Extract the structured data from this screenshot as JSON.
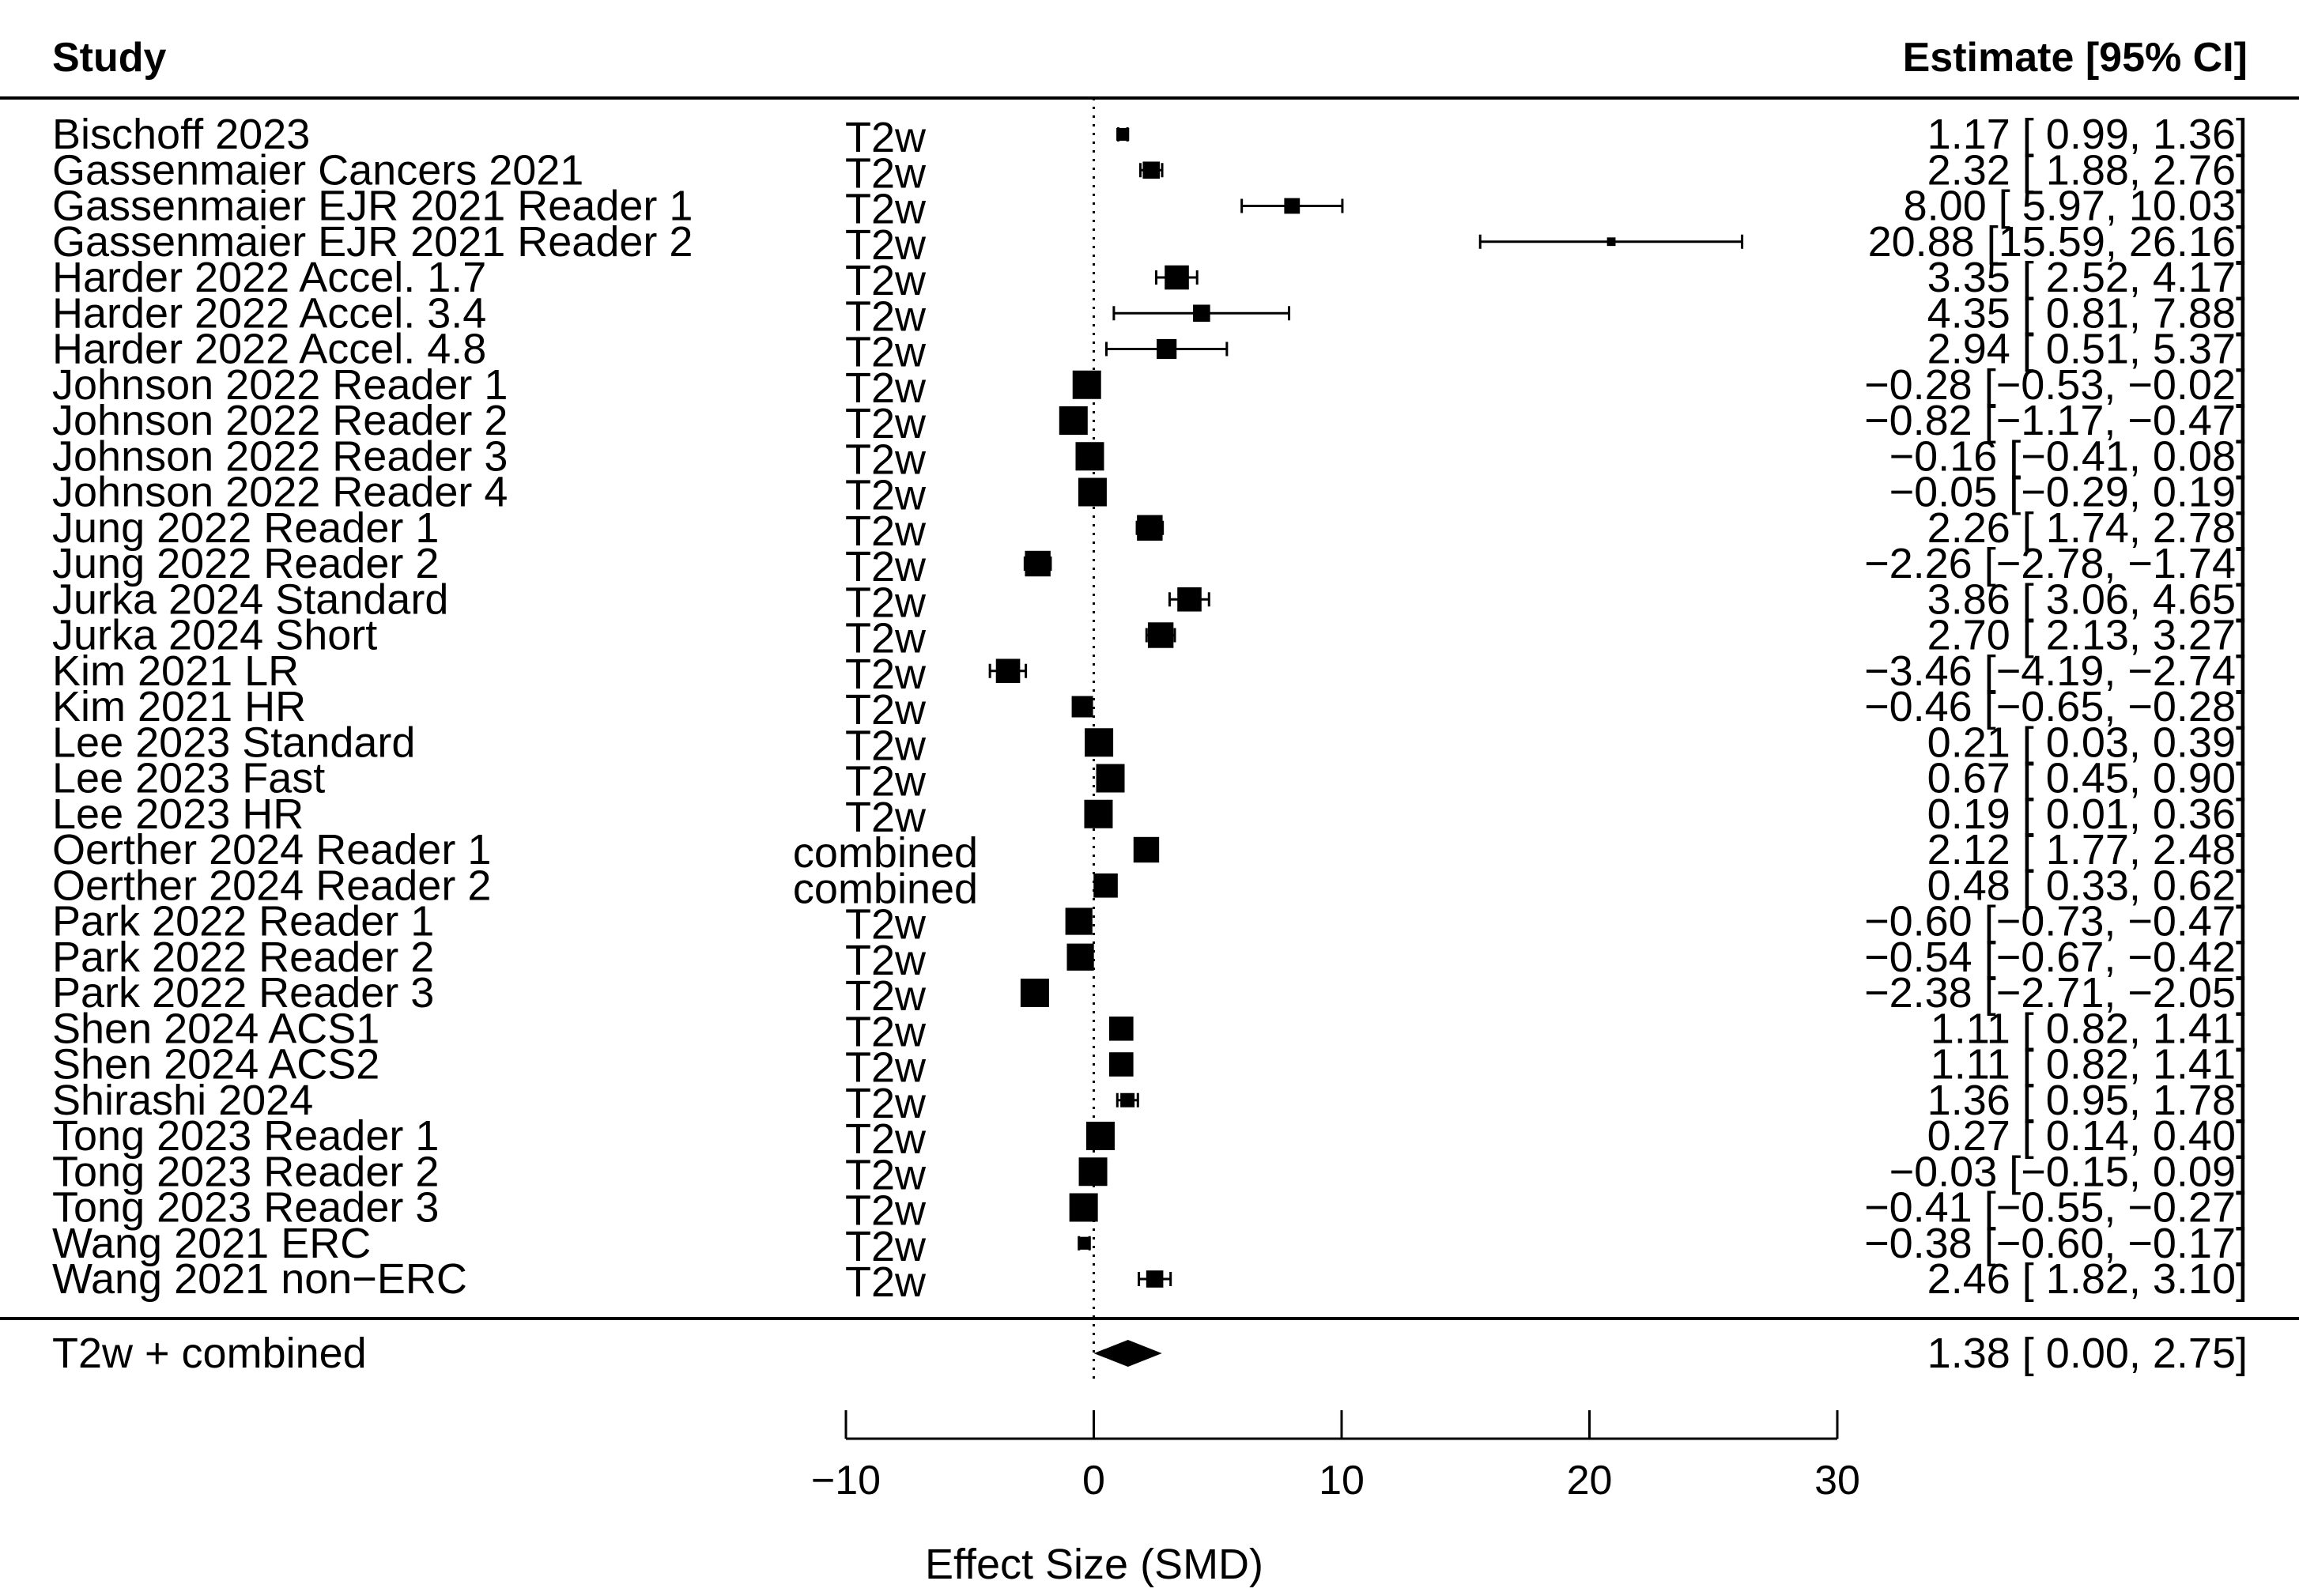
{
  "chart_data": {
    "type": "forest",
    "header": {
      "study": "Study",
      "estimate": "Estimate [95% CI]"
    },
    "xlabel": "Effect Size (SMD)",
    "xlim": [
      -10,
      30
    ],
    "xticks": [
      -10,
      0,
      10,
      20,
      30
    ],
    "xtick_labels": [
      "−10",
      "0",
      "10",
      "20",
      "30"
    ],
    "reference_line": 0,
    "studies": [
      {
        "name": "Bischoff 2023",
        "sequence": "T2w",
        "est": 1.17,
        "lo": 0.99,
        "hi": 1.36,
        "ci_text": "1.17 [ 0.99,  1.36]",
        "box": 0.45
      },
      {
        "name": "Gassenmaier Cancers 2021",
        "sequence": "T2w",
        "est": 2.32,
        "lo": 1.88,
        "hi": 2.76,
        "ci_text": "2.32 [ 1.88,  2.76]",
        "box": 0.6
      },
      {
        "name": "Gassenmaier EJR 2021 Reader 1",
        "sequence": "T2w",
        "est": 8.0,
        "lo": 5.97,
        "hi": 10.03,
        "ci_text": "8.00 [ 5.97, 10.03]",
        "box": 0.55
      },
      {
        "name": "Gassenmaier EJR 2021 Reader 2",
        "sequence": "T2w",
        "est": 20.88,
        "lo": 15.59,
        "hi": 26.16,
        "ci_text": "20.88 [15.59, 26.16]",
        "box": 0.3
      },
      {
        "name": "Harder 2022 Accel. 1.7",
        "sequence": "T2w",
        "est": 3.35,
        "lo": 2.52,
        "hi": 4.17,
        "ci_text": "3.35 [ 2.52,  4.17]",
        "box": 0.85
      },
      {
        "name": "Harder 2022 Accel. 3.4",
        "sequence": "T2w",
        "est": 4.35,
        "lo": 0.81,
        "hi": 7.88,
        "ci_text": "4.35 [ 0.81,  7.88]",
        "box": 0.6
      },
      {
        "name": "Harder 2022 Accel. 4.8",
        "sequence": "T2w",
        "est": 2.94,
        "lo": 0.51,
        "hi": 5.37,
        "ci_text": "2.94 [ 0.51,  5.37]",
        "box": 0.7
      },
      {
        "name": "Johnson 2022 Reader 1",
        "sequence": "T2w",
        "est": -0.28,
        "lo": -0.53,
        "hi": -0.02,
        "ci_text": "−0.28 [−0.53, −0.02]",
        "box": 1.0
      },
      {
        "name": "Johnson 2022 Reader 2",
        "sequence": "T2w",
        "est": -0.82,
        "lo": -1.17,
        "hi": -0.47,
        "ci_text": "−0.82 [−1.17, −0.47]",
        "box": 1.0
      },
      {
        "name": "Johnson 2022 Reader 3",
        "sequence": "T2w",
        "est": -0.16,
        "lo": -0.41,
        "hi": 0.08,
        "ci_text": "−0.16 [−0.41,  0.08]",
        "box": 1.0
      },
      {
        "name": "Johnson 2022 Reader 4",
        "sequence": "T2w",
        "est": -0.05,
        "lo": -0.29,
        "hi": 0.19,
        "ci_text": "−0.05 [−0.29,  0.19]",
        "box": 1.0
      },
      {
        "name": "Jung 2022 Reader 1",
        "sequence": "T2w",
        "est": 2.26,
        "lo": 1.74,
        "hi": 2.78,
        "ci_text": "2.26 [ 1.74,  2.78]",
        "box": 0.9
      },
      {
        "name": "Jung 2022 Reader 2",
        "sequence": "T2w",
        "est": -2.26,
        "lo": -2.78,
        "hi": -1.74,
        "ci_text": "−2.26 [−2.78, −1.74]",
        "box": 0.9
      },
      {
        "name": "Jurka 2024 Standard",
        "sequence": "T2w",
        "est": 3.86,
        "lo": 3.06,
        "hi": 4.65,
        "ci_text": "3.86 [ 3.06,  4.65]",
        "box": 0.85
      },
      {
        "name": "Jurka 2024 Short",
        "sequence": "T2w",
        "est": 2.7,
        "lo": 2.13,
        "hi": 3.27,
        "ci_text": "2.70 [ 2.13,  3.27]",
        "box": 0.9
      },
      {
        "name": "Kim 2021 LR",
        "sequence": "T2w",
        "est": -3.46,
        "lo": -4.19,
        "hi": -2.74,
        "ci_text": "−3.46 [−4.19, −2.74]",
        "box": 0.85
      },
      {
        "name": "Kim 2021 HR",
        "sequence": "T2w",
        "est": -0.46,
        "lo": -0.65,
        "hi": -0.28,
        "ci_text": "−0.46 [−0.65, −0.28]",
        "box": 0.75
      },
      {
        "name": "Lee 2023 Standard",
        "sequence": "T2w",
        "est": 0.21,
        "lo": 0.03,
        "hi": 0.39,
        "ci_text": "0.21 [ 0.03,  0.39]",
        "box": 1.0
      },
      {
        "name": "Lee 2023 Fast",
        "sequence": "T2w",
        "est": 0.67,
        "lo": 0.45,
        "hi": 0.9,
        "ci_text": "0.67 [ 0.45,  0.90]",
        "box": 1.0
      },
      {
        "name": "Lee 2023 HR",
        "sequence": "T2w",
        "est": 0.19,
        "lo": 0.01,
        "hi": 0.36,
        "ci_text": "0.19 [ 0.01,  0.36]",
        "box": 1.0
      },
      {
        "name": "Oerther 2024 Reader 1",
        "sequence": "combined",
        "est": 2.12,
        "lo": 1.77,
        "hi": 2.48,
        "ci_text": "2.12 [ 1.77,  2.48]",
        "box": 0.9
      },
      {
        "name": "Oerther 2024 Reader 2",
        "sequence": "combined",
        "est": 0.48,
        "lo": 0.33,
        "hi": 0.62,
        "ci_text": "0.48 [ 0.33,  0.62]",
        "box": 0.85
      },
      {
        "name": "Park 2022 Reader 1",
        "sequence": "T2w",
        "est": -0.6,
        "lo": -0.73,
        "hi": -0.47,
        "ci_text": "−0.60 [−0.73, −0.47]",
        "box": 0.95
      },
      {
        "name": "Park 2022 Reader 2",
        "sequence": "T2w",
        "est": -0.54,
        "lo": -0.67,
        "hi": -0.42,
        "ci_text": "−0.54 [−0.67, −0.42]",
        "box": 0.95
      },
      {
        "name": "Park 2022 Reader 3",
        "sequence": "T2w",
        "est": -2.38,
        "lo": -2.71,
        "hi": -2.05,
        "ci_text": "−2.38 [−2.71, −2.05]",
        "box": 1.0
      },
      {
        "name": "Shen 2024 ACS1",
        "sequence": "T2w",
        "est": 1.11,
        "lo": 0.82,
        "hi": 1.41,
        "ci_text": "1.11 [ 0.82,  1.41]",
        "box": 0.85
      },
      {
        "name": "Shen 2024 ACS2",
        "sequence": "T2w",
        "est": 1.11,
        "lo": 0.82,
        "hi": 1.41,
        "ci_text": "1.11 [ 0.82,  1.41]",
        "box": 0.85
      },
      {
        "name": "Shirashi 2024",
        "sequence": "T2w",
        "est": 1.36,
        "lo": 0.95,
        "hi": 1.78,
        "ci_text": "1.36 [ 0.95,  1.78]",
        "box": 0.5
      },
      {
        "name": "Tong 2023 Reader 1",
        "sequence": "T2w",
        "est": 0.27,
        "lo": 0.14,
        "hi": 0.4,
        "ci_text": "0.27 [ 0.14,  0.40]",
        "box": 1.0
      },
      {
        "name": "Tong 2023 Reader 2",
        "sequence": "T2w",
        "est": -0.03,
        "lo": -0.15,
        "hi": 0.09,
        "ci_text": "−0.03 [−0.15,  0.09]",
        "box": 1.0
      },
      {
        "name": "Tong 2023 Reader 3",
        "sequence": "T2w",
        "est": -0.41,
        "lo": -0.55,
        "hi": -0.27,
        "ci_text": "−0.41 [−0.55, −0.27]",
        "box": 1.0
      },
      {
        "name": "Wang 2021 ERC",
        "sequence": "T2w",
        "est": -0.38,
        "lo": -0.6,
        "hi": -0.17,
        "ci_text": "−0.38 [−0.60, −0.17]",
        "box": 0.45
      },
      {
        "name": "Wang 2021 non−ERC",
        "sequence": "T2w",
        "est": 2.46,
        "lo": 1.82,
        "hi": 3.1,
        "ci_text": "2.46 [ 1.82,  3.10]",
        "box": 0.6
      }
    ],
    "summary": {
      "label": "T2w + combined",
      "est": 1.38,
      "lo": 0.0,
      "hi": 2.75,
      "ci_text": "1.38 [ 0.00,  2.75]"
    }
  }
}
